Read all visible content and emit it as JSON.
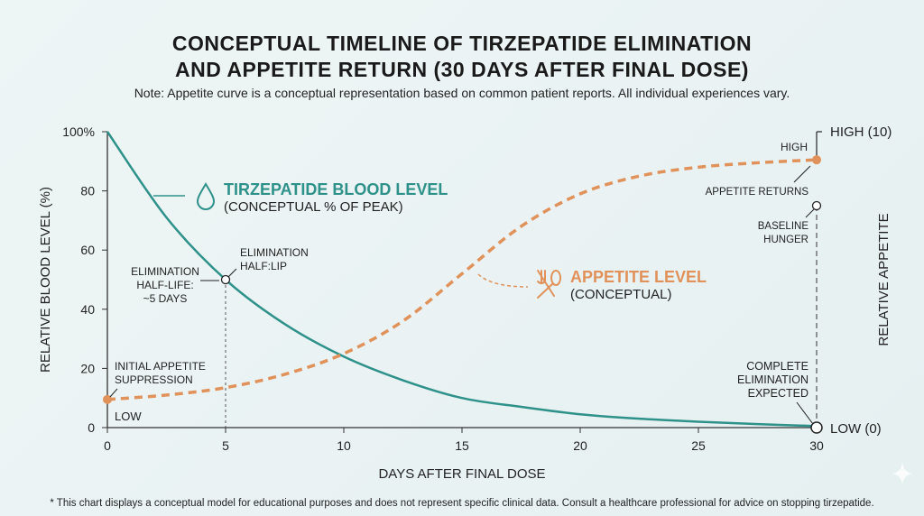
{
  "title_line1": "CONCEPTUAL TIMELINE OF TIRZEPATIDE ELIMINATION",
  "title_line2": "AND APPETITE RETURN (30 DAYS AFTER FINAL DOSE)",
  "note": "Note: Appetite curve is a conceptual representation based on common patient reports. All individual experiences vary.",
  "footnote": "* This chart displays a conceptual model for educational purposes and does not represent specific clinical data. Consult a healthcare professional for advice on stopping tirzepatide.",
  "colors": {
    "blood": "#2e918a",
    "appetite": "#e0925a",
    "axis": "#333333"
  },
  "chart_data": {
    "type": "line",
    "xlabel": "DAYS AFTER FINAL DOSE",
    "ylabel": "RELATIVE BLOOD LEVEL (%)",
    "y2label": "RELATIVE APPETITE",
    "xlim": [
      0,
      30
    ],
    "ylim": [
      0,
      100
    ],
    "y2lim": [
      0,
      10
    ],
    "x_ticks": [
      "0",
      "5",
      "10",
      "15",
      "20",
      "25",
      "30"
    ],
    "y_ticks": [
      "0",
      "20",
      "40",
      "60",
      "80",
      "100%"
    ],
    "y2_ticks": [
      "LOW (0)",
      "HIGH (10)"
    ],
    "grid": false,
    "series": [
      {
        "name": "TIRZEPATIDE BLOOD LEVEL",
        "sub": "(CONCEPTUAL % OF PEAK)",
        "axis": "left",
        "style": "solid",
        "icon": "droplet-icon",
        "x": [
          0,
          2.5,
          5,
          7.5,
          10,
          12.5,
          15,
          17.5,
          20,
          22.5,
          25,
          27.5,
          30
        ],
        "y": [
          100,
          71,
          50,
          35,
          24,
          16,
          10,
          7,
          4.5,
          3,
          2,
          1.2,
          0.5
        ]
      },
      {
        "name": "APPETITE LEVEL",
        "sub": "(CONCEPTUAL)",
        "axis": "right",
        "style": "dashed",
        "icon": "fork-spoon-icon",
        "x": [
          0,
          2.5,
          5,
          7.5,
          10,
          12.5,
          15,
          17.5,
          20,
          22.5,
          25,
          27.5,
          30
        ],
        "y": [
          0.95,
          1.1,
          1.35,
          1.8,
          2.5,
          3.6,
          5.2,
          6.8,
          7.9,
          8.5,
          8.8,
          8.95,
          9.05
        ]
      }
    ],
    "annotations": {
      "half_life_left": [
        "ELIMINATION",
        "HALF-LIFE:",
        "~5 DAYS"
      ],
      "half_life_right": [
        "ELIMINATION",
        "HALF:LIP"
      ],
      "initial": [
        "INITIAL APPETITE",
        "SUPPRESSION"
      ],
      "low": "LOW",
      "high": "HIGH",
      "appetite_returns": "APPETITE RETURNS",
      "baseline": [
        "BASELINE",
        "HUNGER"
      ],
      "baseline_value": 7.5,
      "complete": [
        "COMPLETE",
        "ELIMINATION",
        "EXPECTED"
      ]
    }
  }
}
